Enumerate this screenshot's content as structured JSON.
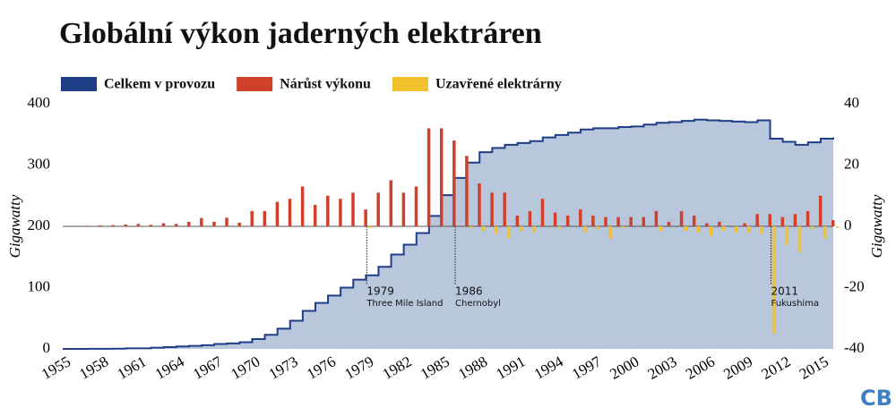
{
  "chart_data": {
    "type": "step-bar",
    "title": "Globální výkon jaderných elektráren",
    "ylabel": "Gigawatty",
    "y2label": "Gigawatty",
    "legend": "top-left",
    "x": [
      1955,
      1956,
      1957,
      1958,
      1959,
      1960,
      1961,
      1962,
      1963,
      1964,
      1965,
      1966,
      1967,
      1968,
      1969,
      1970,
      1971,
      1972,
      1973,
      1974,
      1975,
      1976,
      1977,
      1978,
      1979,
      1980,
      1981,
      1982,
      1983,
      1984,
      1985,
      1986,
      1987,
      1988,
      1989,
      1990,
      1991,
      1992,
      1993,
      1994,
      1995,
      1996,
      1997,
      1998,
      1999,
      2000,
      2001,
      2002,
      2003,
      2004,
      2005,
      2006,
      2007,
      2008,
      2009,
      2010,
      2011,
      2012,
      2013,
      2014,
      2015,
      2016
    ],
    "series": [
      {
        "name": "Celkem v provozu",
        "color": "#1f3e87",
        "axis": "y",
        "values": [
          0,
          0,
          0.1,
          0.2,
          0.4,
          1,
          1,
          2,
          3,
          4,
          5,
          6,
          8,
          9,
          11,
          16,
          23,
          33,
          46,
          62,
          75,
          87,
          100,
          113,
          120,
          134,
          154,
          170,
          189,
          217,
          251,
          279,
          304,
          321,
          328,
          333,
          336,
          339,
          345,
          349,
          353,
          358,
          360,
          360,
          362,
          363,
          366,
          369,
          370,
          372,
          374,
          373,
          372,
          371,
          370,
          373,
          343,
          338,
          333,
          337,
          343,
          345
        ]
      },
      {
        "name": "Nárůst výkonu",
        "color": "#d0402a",
        "axis": "y2",
        "values": [
          0,
          0,
          0.2,
          0.3,
          0.4,
          0.6,
          0.8,
          0.5,
          1,
          0.8,
          1.5,
          2.7,
          1.5,
          2.8,
          1.2,
          5,
          5,
          8,
          9,
          13,
          7,
          10,
          9,
          11,
          5.5,
          11,
          15,
          11,
          13,
          32,
          32,
          28,
          23,
          14,
          11,
          11,
          3.5,
          5,
          9,
          4.5,
          3.5,
          5.5,
          3.5,
          3,
          3,
          3,
          3,
          5,
          1.5,
          5,
          3.5,
          1,
          1.5,
          0,
          1,
          4,
          4,
          3,
          4,
          5,
          10,
          2
        ]
      },
      {
        "name": "Uzavřené elektrárny",
        "color": "#f2c12e",
        "axis": "y2",
        "values": [
          0,
          0,
          0,
          0,
          0,
          0,
          0,
          0,
          0,
          0,
          0,
          0,
          0,
          0,
          0,
          0,
          0,
          0,
          0,
          0,
          0,
          0,
          0,
          0,
          -0.5,
          0,
          0,
          0,
          0,
          0,
          0,
          0,
          -0.5,
          -1.5,
          -2.5,
          -4,
          -1.5,
          -2,
          0,
          -0.8,
          0,
          -2,
          -1,
          -4,
          -0.5,
          0,
          0,
          -1.5,
          0,
          -1.5,
          -2,
          -3,
          -1.5,
          -2,
          -2,
          -2.5,
          -35,
          -6,
          -8.5,
          -1,
          -4,
          -0.5
        ]
      }
    ],
    "xlim": [
      1955,
      2016
    ],
    "xticks": [
      1955,
      1958,
      1961,
      1964,
      1967,
      1970,
      1973,
      1976,
      1979,
      1982,
      1985,
      1988,
      1991,
      1994,
      1997,
      2000,
      2003,
      2006,
      2009,
      2012,
      2015
    ],
    "ylim": [
      0,
      400
    ],
    "yticks": [
      0,
      100,
      200,
      300,
      400
    ],
    "y2lim": [
      -40,
      40
    ],
    "y2ticks": [
      -40,
      -20,
      0,
      20,
      40
    ],
    "annotations": [
      {
        "x": 1979,
        "year": "1979",
        "text": "Three Mile Island"
      },
      {
        "x": 1986,
        "year": "1986",
        "text": "Chernobyl"
      },
      {
        "x": 2011,
        "year": "2011",
        "text": "Fukushima"
      }
    ],
    "logo": "CB"
  }
}
